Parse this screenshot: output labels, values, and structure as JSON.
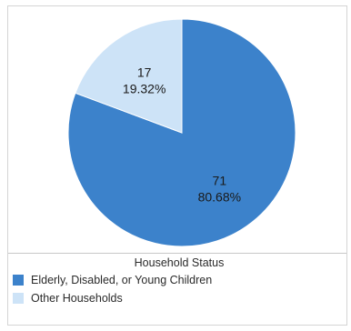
{
  "chart_data": {
    "type": "pie",
    "categories": [
      "Elderly, Disabled, or Young Children",
      "Other Households"
    ],
    "values": [
      71,
      17
    ],
    "percentages": [
      "80.68%",
      "19.32%"
    ],
    "colors": [
      "#3c82cb",
      "#cde3f7"
    ],
    "title": "",
    "legend_title": "Household Status",
    "legend_position": "bottom"
  }
}
